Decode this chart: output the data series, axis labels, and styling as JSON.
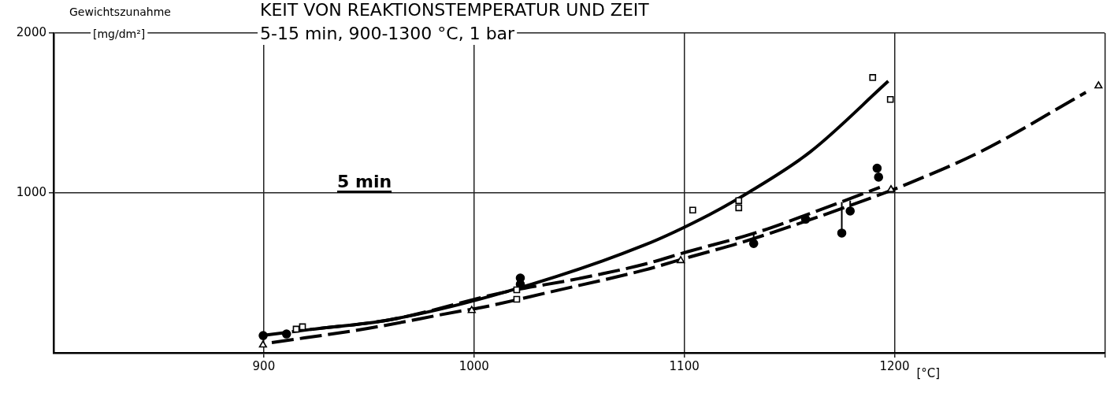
{
  "chart_data": {
    "type": "scatter",
    "title": "KEIT VON REAKTIONSTEMPERATUR UND ZEIT",
    "subtitle": "5-15 min, 900-1300 °C, 1 bar",
    "ylabel": "Gewichtszunahme [mg/dm²]",
    "xlabel": "[°C]",
    "annotations": [
      "5 min"
    ],
    "xlim": [
      800,
      1300
    ],
    "xticks": [
      900,
      1000,
      1100,
      1200,
      {
        "value": 1300,
        "label": null
      }
    ],
    "ylim": [
      0,
      2000
    ],
    "yticks": [
      1000,
      2000
    ],
    "grid": true,
    "legend": false,
    "series": [
      {
        "marker": "square",
        "color": "#000000",
        "x": [
          915.4,
          918.4,
          1020.3,
          1020.3,
          1104,
          1125.9,
          1125.9,
          1189.6,
          1198
        ],
        "values": [
          148,
          163,
          394,
          335,
          893,
          952,
          907,
          1722,
          1585
        ]
      },
      {
        "marker": "circle",
        "color": "#000000",
        "x": [
          899.7,
          910.8,
          1022,
          1022,
          1133,
          1157.7,
          1174.9,
          1178.9,
          1191.7,
          1192.4
        ],
        "values": [
          108,
          118,
          468,
          429,
          684,
          836,
          749,
          887,
          1155,
          1099
        ],
        "errors": [
          null,
          null,
          null,
          null,
          [
            684,
            748
          ],
          null,
          [
            749,
            943
          ],
          [
            887,
            952
          ],
          null,
          null
        ]
      },
      {
        "marker": "triangle",
        "color": "#000000",
        "x": [
          899.6,
          998.9,
          1098.3,
          1198.3,
          1297
        ],
        "values": [
          49,
          265,
          577,
          1021,
          1670
        ]
      },
      {
        "type": "line",
        "marker": "none",
        "line_style": "solid",
        "color": "#000000",
        "x": [
          922,
          960,
          1015,
          1081,
          1112,
          1130,
          1160,
          1197
        ],
        "values": [
          146,
          207,
          381,
          674,
          865,
          999,
          1258,
          1699
        ]
      },
      {
        "type": "line",
        "marker": "none",
        "line_style": "dashed",
        "color": "#000000",
        "x": [
          900,
          922,
          960,
          1015,
          1050,
          1081,
          1101.7,
          1133.5,
          1161,
          1193
        ],
        "values": [
          110,
          146,
          207,
          381,
          465,
          554,
          633,
          749,
          877,
          1035
        ]
      },
      {
        "type": "line",
        "marker": "none",
        "line_style": "dashed",
        "color": "#000000",
        "x": [
          903.8,
          950,
          993.5,
          1003.4,
          1036,
          1081,
          1103,
          1127.8,
          1193,
          1203,
          1240.9,
          1291
        ],
        "values": [
          64,
          154,
          261,
          283,
          380,
          518,
          601,
          693,
          989,
          1040,
          1258,
          1629
        ]
      }
    ]
  }
}
